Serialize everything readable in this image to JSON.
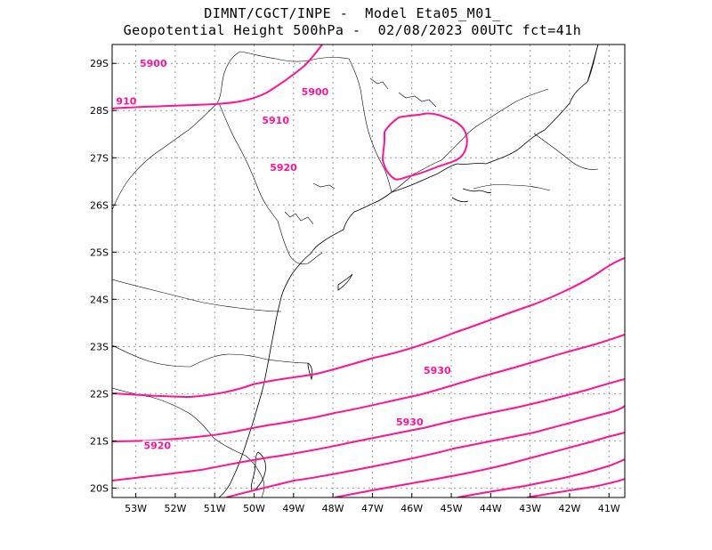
{
  "title": {
    "line1": "DIMNT/CGCT/INPE -  Model Eta05_M01_",
    "line2": "Geopotential Height 500hPa -  02/08/2023 00UTC fct=41h"
  },
  "map": {
    "lon_range": [
      -53.6,
      -40.6
    ],
    "lat_range": [
      -29.4,
      -19.8
    ],
    "lat_ticks": [
      "20S",
      "21S",
      "22S",
      "23S",
      "24S",
      "25S",
      "26S",
      "27S",
      "28S",
      "29S"
    ],
    "lon_ticks": [
      "53W",
      "52W",
      "51W",
      "50W",
      "49W",
      "48W",
      "47W",
      "46W",
      "45W",
      "44W",
      "43W",
      "42W",
      "41W"
    ],
    "contour_color": "#ff1493",
    "contour_labels": [
      {
        "text": "5920",
        "lon": -52.8,
        "lat": -20.9
      },
      {
        "text": "5930",
        "lon": -46.4,
        "lat": -21.4
      },
      {
        "text": "5930",
        "lon": -45.7,
        "lat": -22.5
      },
      {
        "text": "5920",
        "lon": -49.6,
        "lat": -26.8
      },
      {
        "text": "5910",
        "lon": -49.8,
        "lat": -27.8
      },
      {
        "text": "910",
        "lon": -53.5,
        "lat": -28.2
      },
      {
        "text": "5900",
        "lon": -48.8,
        "lat": -28.4
      },
      {
        "text": "5900",
        "lon": -52.9,
        "lat": -29.0
      }
    ]
  }
}
